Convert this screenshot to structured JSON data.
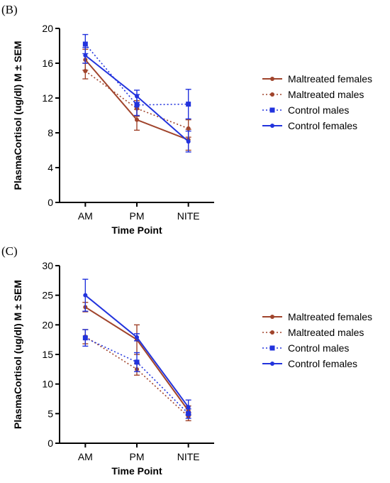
{
  "panels": [
    {
      "label": "(B)",
      "chart_data": {
        "type": "line",
        "categories": [
          "AM",
          "PM",
          "NITE"
        ],
        "xlabel": "Time Point",
        "ylabel": "PlasmaCortisol (ug/dl) M ± SEM",
        "ylim": [
          0,
          20
        ],
        "yticks": [
          0,
          4,
          8,
          12,
          16,
          20
        ],
        "legend": "right",
        "series": [
          {
            "name": "Maltreated females",
            "values": [
              16.4,
              9.5,
              7.2
            ],
            "errors": [
              1.2,
              1.2,
              1.2
            ],
            "color": "#a0442c",
            "dashed": false,
            "marker": "dot"
          },
          {
            "name": "Maltreated males",
            "values": [
              15.1,
              10.8,
              8.5
            ],
            "errors": [
              0.9,
              0.9,
              1.0
            ],
            "color": "#a0442c",
            "dashed": true,
            "marker": "dot"
          },
          {
            "name": "Control males",
            "values": [
              18.2,
              11.2,
              11.3
            ],
            "errors": [
              1.1,
              1.2,
              1.7
            ],
            "color": "#2233dd",
            "dashed": true,
            "marker": "square"
          },
          {
            "name": "Control females",
            "values": [
              16.9,
              12.2,
              7.0
            ],
            "errors": [
              0.9,
              0.7,
              1.2
            ],
            "color": "#2233dd",
            "dashed": false,
            "marker": "dot"
          }
        ]
      }
    },
    {
      "label": "(C)",
      "chart_data": {
        "type": "line",
        "categories": [
          "AM",
          "PM",
          "NITE"
        ],
        "xlabel": "Time Point",
        "ylabel": "PlasmaCortisol (ug/dl) M ± SEM",
        "ylim": [
          0,
          30
        ],
        "yticks": [
          0,
          5,
          10,
          15,
          20,
          25,
          30
        ],
        "legend": "right",
        "series": [
          {
            "name": "Maltreated females",
            "values": [
              23.0,
              17.5,
              5.5
            ],
            "errors": [
              0.8,
              2.5,
              0.8
            ],
            "color": "#a0442c",
            "dashed": false,
            "marker": "dot"
          },
          {
            "name": "Maltreated males",
            "values": [
              18.0,
              12.5,
              4.5
            ],
            "errors": [
              1.2,
              1.0,
              0.7
            ],
            "color": "#a0442c",
            "dashed": true,
            "marker": "dot"
          },
          {
            "name": "Control males",
            "values": [
              17.8,
              13.7,
              5.0
            ],
            "errors": [
              1.4,
              1.6,
              0.8
            ],
            "color": "#2233dd",
            "dashed": true,
            "marker": "square"
          },
          {
            "name": "Control females",
            "values": [
              25.0,
              17.9,
              6.1
            ],
            "errors": [
              2.7,
              0.6,
              1.2
            ],
            "color": "#2233dd",
            "dashed": false,
            "marker": "dot"
          }
        ]
      }
    }
  ]
}
